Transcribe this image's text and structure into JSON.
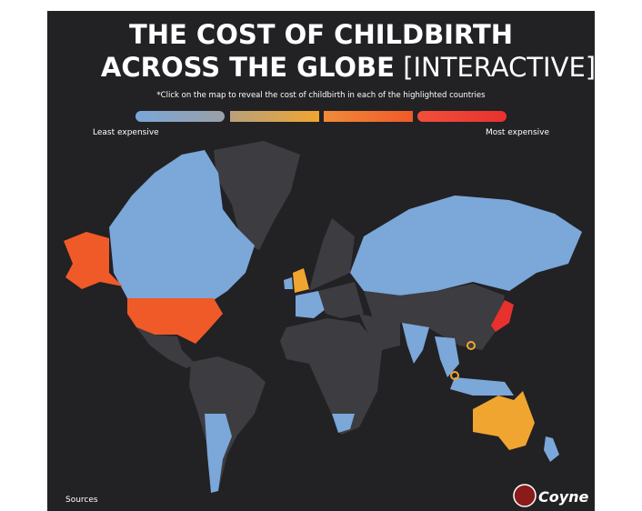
{
  "header": {
    "title_line1": "THE COST OF CHILDBIRTH",
    "title_line2": "ACROSS THE GLOBE",
    "title_tag": "[INTERACTIVE]",
    "subtitle": "*Click on the map to reveal the cost of childbirth in each of the highlighted countries"
  },
  "legend": {
    "low": "Least expensive",
    "high": "Most expensive"
  },
  "footer": {
    "sources": "Sources",
    "logo": "Coyne"
  }
}
